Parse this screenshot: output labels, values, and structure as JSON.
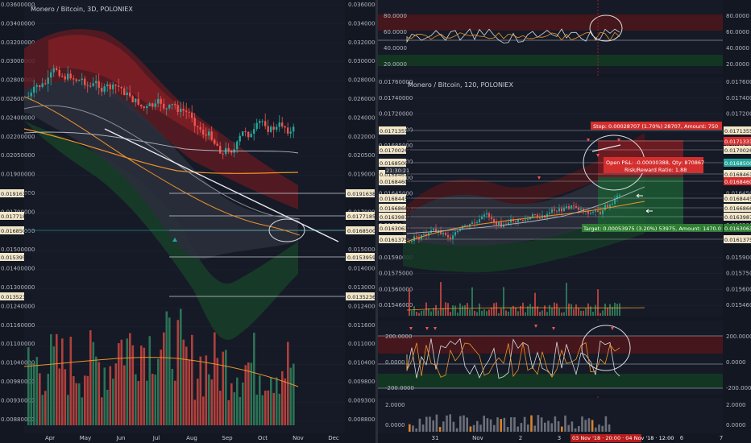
{
  "colors": {
    "bg": "#131722",
    "up": "#26a69a",
    "down": "#ef5350",
    "upVol": "#2e7d5b",
    "downVol": "#c2453f",
    "orange": "#f0932b",
    "white": "#d1d4dc",
    "grid": "#1f2433",
    "boxRed": "#7a1c22",
    "boxGreen": "#1b4d2e"
  },
  "left": {
    "title": "Monero / Bitcoin, 3D, POLONIEX",
    "axis_ticks": [
      "0.03600000",
      "0.03400000",
      "0.03200000",
      "0.03000000",
      "0.02800000",
      "0.02600000",
      "0.02400000",
      "0.02200000",
      "0.02050000",
      "0.01900000",
      "0.01800000",
      "0.01700000",
      "0.01600000",
      "0.01500000",
      "0.01400000",
      "0.01300000",
      "0.01240000",
      "0.01160000",
      "0.01100000",
      "0.01040000",
      "0.00980000",
      "0.00930000",
      "0.00880000"
    ],
    "x_labels": [
      "Apr",
      "May",
      "Jun",
      "Jul",
      "Aug",
      "Sep",
      "Oct",
      "Nov",
      "Dec"
    ],
    "level_labels": [
      "0.01916386",
      "0.01771854",
      "0.01685000",
      "0.01539599",
      "0.01352363"
    ]
  },
  "right_top": {
    "axis_ticks": [
      "80.0000",
      "60.0000",
      "40.0000",
      "20.0000"
    ]
  },
  "right_main": {
    "title": "Monero / Bitcoin, 120, POLONIEX",
    "axis_ticks": [
      "0.01760000",
      "0.01740000",
      "0.01720000",
      "0.01700000",
      "0.01685000",
      "0.01665000",
      "0.01655000",
      "0.01645000",
      "0.01630000",
      "0.01620000",
      "0.01605000",
      "0.01590000",
      "0.01575000",
      "0.01560000",
      "0.01546000"
    ],
    "level_labels": [
      {
        "text": "0.01713550",
        "kind": "plain"
      },
      {
        "text": "0.01713319",
        "kind": "red"
      },
      {
        "text": "0.01700266",
        "kind": "plain"
      },
      {
        "text": "0.01685000",
        "kind": "teal"
      },
      {
        "text": "0.01684612",
        "kind": "plain"
      },
      {
        "text": "0.01684600",
        "kind": "red"
      },
      {
        "text": "0.01684450",
        "kind": "plain"
      },
      {
        "text": "0.01668669",
        "kind": "plain"
      },
      {
        "text": "0.01639877",
        "kind": "plain"
      },
      {
        "text": "0.01630637",
        "kind": "green"
      },
      {
        "text": "0.01613752",
        "kind": "plain"
      }
    ],
    "left_level_labels": [
      "0.01713550",
      "0.01700266",
      "0.01685000",
      "0.01684612",
      "0.01684600",
      "0.01684450",
      "0.01668669",
      "0.01639877",
      "0.01630637",
      "0.01613752"
    ],
    "stop_label": "Stop: 0.00028707 (1.70%) 28707, Amount: 750",
    "pnl_label": "Open P&L: -0.00000388, Qty: 870867",
    "rr_label": "Risk/Reward Ratio: 1.88",
    "target_label": "Target: 0.00053975 (3.20%) 53975, Amount: 1470.0",
    "time_label": "21:30:21"
  },
  "right_osc": {
    "axis_ticks": [
      "200.0000",
      "0.0000",
      "-200.0000"
    ]
  },
  "right_bottom": {
    "axis_ticks": [
      "2.0000",
      "0.0000"
    ],
    "x_labels": [
      "31",
      "Nov",
      "2",
      "3",
      "4",
      "6",
      "7"
    ],
    "highlight_label": "03 Nov '18 · 20:00 · 04 Nov '18 · 12:00"
  },
  "chart_data": [
    {
      "type": "candlestick",
      "title": "Monero / Bitcoin, 3D, POLONIEX",
      "x": [
        "Apr",
        "May",
        "Jun",
        "Jul",
        "Aug",
        "Sep",
        "Oct",
        "Nov",
        "Dec"
      ],
      "ylim": [
        0.0088,
        0.036
      ],
      "last_price": 0.01685,
      "levels": [
        0.01916386,
        0.01771854,
        0.01685,
        0.01539599,
        0.01352363
      ]
    },
    {
      "type": "candlestick",
      "title": "Monero / Bitcoin, 120, POLONIEX",
      "x": [
        "31",
        "Nov",
        "2",
        "3",
        "4",
        "6",
        "7"
      ],
      "ylim": [
        0.01546,
        0.0176
      ],
      "last_price": 0.01685,
      "stop": 0.01713319,
      "target": 0.01630637,
      "risk_reward": 1.88
    }
  ]
}
